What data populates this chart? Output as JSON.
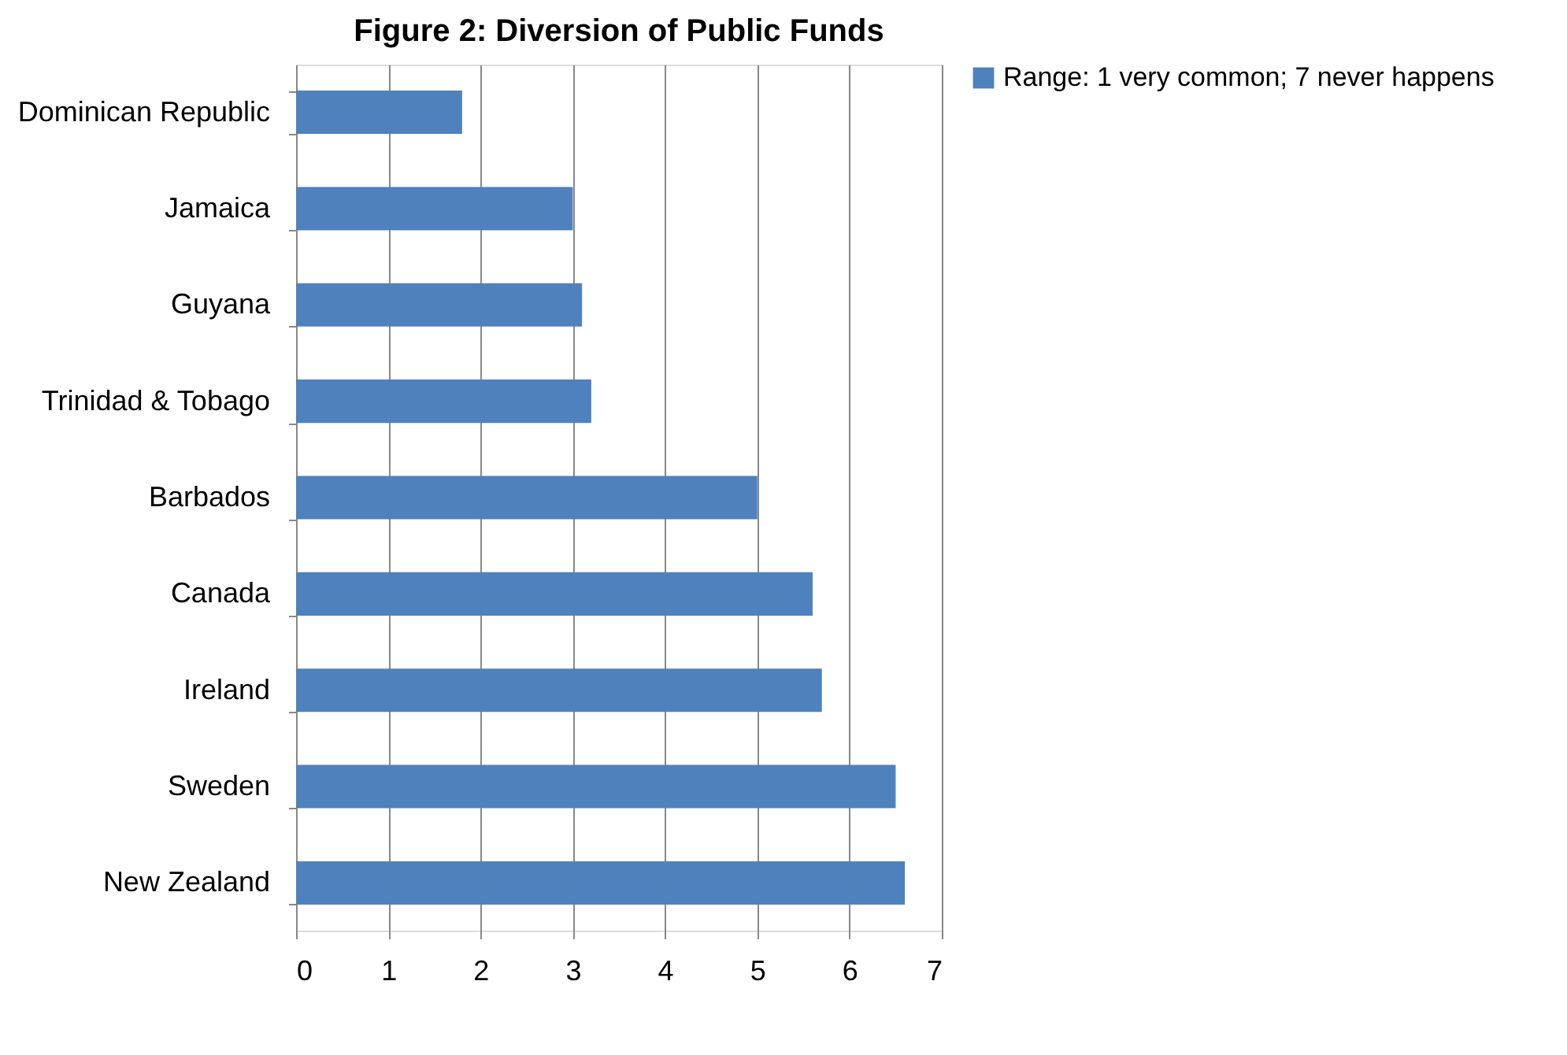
{
  "chart_data": {
    "type": "bar",
    "orientation": "horizontal",
    "title": "Figure 2: Diversion of Public Funds",
    "categories": [
      "Dominican Republic",
      "Jamaica",
      "Guyana",
      "Trinidad & Tobago",
      "Barbados",
      "Canada",
      "Ireland",
      "Sweden",
      "New Zealand"
    ],
    "series": [
      {
        "name": "Range: 1 very common; 7 never happens",
        "color": "#4f81bd",
        "values": [
          1.8,
          3.0,
          3.1,
          3.2,
          5.0,
          5.6,
          5.7,
          6.5,
          6.6
        ]
      }
    ],
    "xlim": [
      0,
      7
    ],
    "xticks": [
      0,
      1,
      2,
      3,
      4,
      5,
      6,
      7
    ],
    "grid": "x",
    "legend": "right"
  }
}
